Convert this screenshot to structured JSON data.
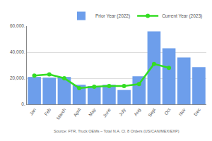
{
  "chart_data": {
    "type": "bar",
    "categories": [
      "Jan",
      "Feb",
      "March",
      "April",
      "May",
      "June",
      "July",
      "Aug",
      "Sept",
      "Oct",
      "Nov",
      "Dec"
    ],
    "series": [
      {
        "name": "Prior Year (2022)",
        "type": "bar",
        "color": "#6d9eeb",
        "values": [
          21000,
          20500,
          21000,
          15000,
          14000,
          15000,
          11000,
          21500,
          56000,
          43000,
          36000,
          28500
        ]
      },
      {
        "name": "Current Year (2023)",
        "type": "line",
        "color": "#33dd22",
        "marker": "circle",
        "values": [
          22000,
          23000,
          20000,
          12500,
          13500,
          14000,
          14000,
          15500,
          31000,
          28000,
          null,
          null
        ]
      }
    ],
    "ylim": [
      0,
      60000
    ],
    "yticks": [
      {
        "value": 0,
        "label": "0."
      },
      {
        "value": 20000,
        "label": "20,000."
      },
      {
        "value": 40000,
        "label": "40,000."
      },
      {
        "value": 60000,
        "label": "60,000."
      }
    ],
    "grid": true,
    "legend": "top right",
    "annotations": [
      "Source: FTR, Truck OEMs – Total N.A. Cl. 8 Orders (US/CAN/MEX/EXP)"
    ]
  }
}
